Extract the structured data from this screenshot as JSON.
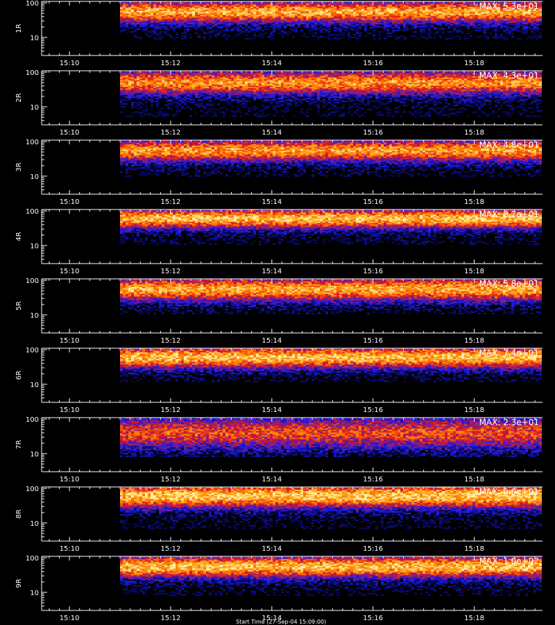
{
  "chart_data": {
    "type": "heatmap",
    "panel_count": 9,
    "time_range_minutes": [
      9.45,
      19.35
    ],
    "data_start_minute": 11.0,
    "y_scale": "log",
    "ylim": [
      3,
      110
    ],
    "x_tick_labels": [
      "15:10",
      "15:12",
      "15:14",
      "15:16",
      "15:18"
    ],
    "y_tick_labels": [
      "10",
      "100"
    ],
    "footer_text": "Start Time (27-Sep-04 15:09:00)",
    "colormap": [
      "#000000",
      "#0a0a6e",
      "#1a1ae6",
      "#7a1f8c",
      "#d4142a",
      "#ff6a00",
      "#ffb020",
      "#fff2a0"
    ],
    "panels": [
      {
        "label": "1R",
        "max_label": "MAX: 5.3e+01",
        "band_peak": 55,
        "band_width": 0.55,
        "low_cut": 9,
        "seed": 11,
        "intensity": 0.85
      },
      {
        "label": "2R",
        "max_label": "MAX: 4.3e+01",
        "band_peak": 50,
        "band_width": 0.6,
        "low_cut": 5,
        "seed": 23,
        "intensity": 0.8
      },
      {
        "label": "3R",
        "max_label": "MAX: 4.8e+01",
        "band_peak": 55,
        "band_width": 0.55,
        "low_cut": 10,
        "seed": 37,
        "intensity": 0.82
      },
      {
        "label": "4R",
        "max_label": "MAX: 8.2e+01",
        "band_peak": 60,
        "band_width": 0.5,
        "low_cut": 11,
        "seed": 41,
        "intensity": 0.9
      },
      {
        "label": "5R",
        "max_label": "MAX: 5.8e+01",
        "band_peak": 55,
        "band_width": 0.6,
        "low_cut": 11,
        "seed": 53,
        "intensity": 0.85
      },
      {
        "label": "6R",
        "max_label": "MAX: 7.4e+01",
        "band_peak": 60,
        "band_width": 0.55,
        "low_cut": 12,
        "seed": 67,
        "intensity": 0.9
      },
      {
        "label": "7R",
        "max_label": "MAX: 2.3e+01",
        "band_peak": 40,
        "band_width": 0.8,
        "low_cut": 8,
        "seed": 71,
        "intensity": 0.65
      },
      {
        "label": "8R",
        "max_label": "MAX: 9.0e+01",
        "band_peak": 60,
        "band_width": 0.6,
        "low_cut": 7,
        "seed": 83,
        "intensity": 0.92
      },
      {
        "label": "9R",
        "max_label": "MAX: 1.0e+02",
        "band_peak": 55,
        "band_width": 0.55,
        "low_cut": 8,
        "seed": 97,
        "intensity": 0.9
      }
    ]
  }
}
